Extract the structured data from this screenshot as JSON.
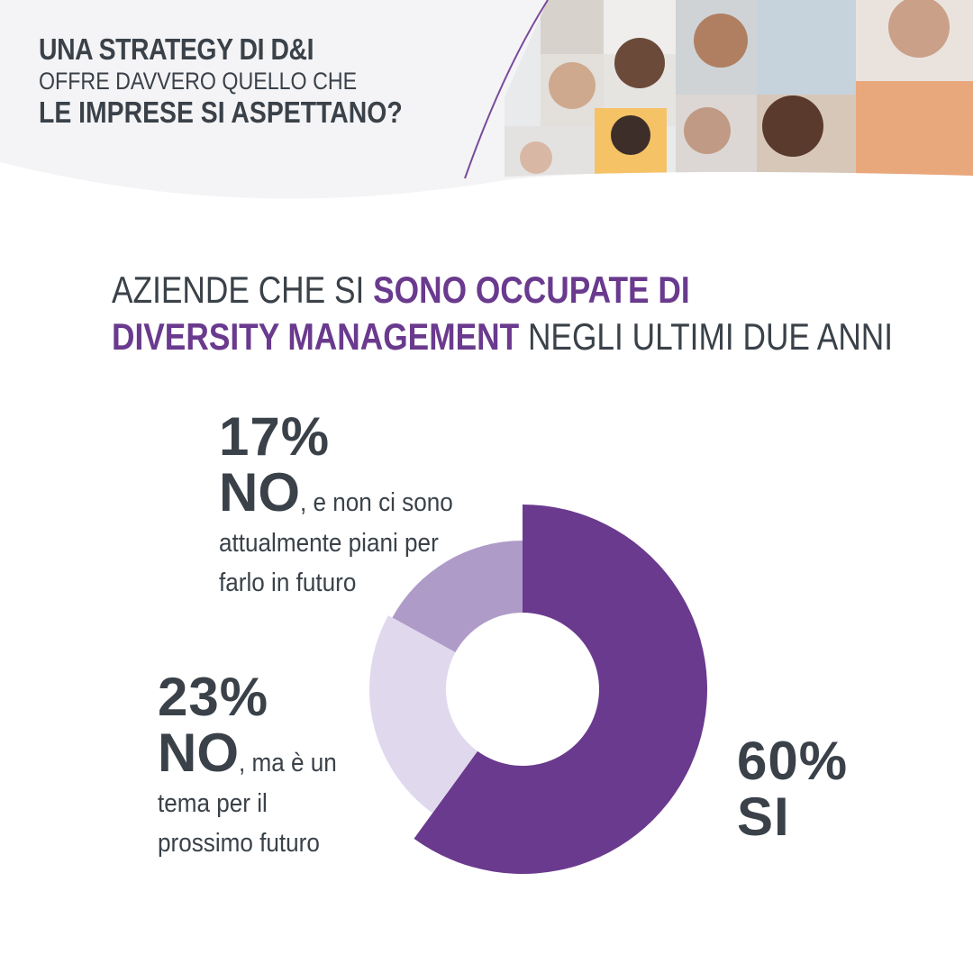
{
  "header": {
    "line1": "UNA STRATEGY DI D&I",
    "line2": "OFFRE DAVVERO QUELLO CHE",
    "line3": "LE IMPRESE SI ASPETTANO?"
  },
  "headline": {
    "part1": "AZIENDE CHE SI ",
    "part2_highlight": "SONO OCCUPATE DI",
    "part3_highlight": "DIVERSITY MANAGEMENT",
    "part4": " NEGLI ULTIMI DUE ANNI"
  },
  "colors": {
    "text": "#3a4149",
    "accent": "#6a3a8e",
    "si": "#6a3a8e",
    "no_future": "#e0d9ee",
    "no_never": "#af9bc8"
  },
  "chart_data": {
    "type": "pie",
    "donut": true,
    "slices": [
      {
        "value": 60,
        "pct_label": "60%",
        "answer": "SI",
        "desc": "",
        "color": "#6a3a8e"
      },
      {
        "value": 23,
        "pct_label": "23%",
        "answer": "NO",
        "desc_first": ", ma è un",
        "desc_rest": [
          "tema per il",
          "prossimo futuro"
        ],
        "color": "#e0d9ee"
      },
      {
        "value": 17,
        "pct_label": "17%",
        "answer": "NO",
        "desc_first": ", e non ci sono",
        "desc_rest": [
          "attualmente piani per",
          "farlo in futuro"
        ],
        "color": "#af9bc8"
      }
    ]
  }
}
